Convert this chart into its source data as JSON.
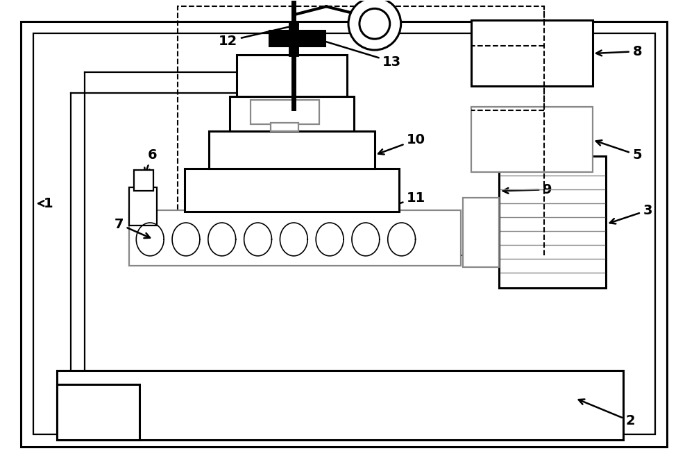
{
  "bg_color": "#ffffff",
  "lc": "#000000",
  "gc": "#888888",
  "fig_width": 10.0,
  "fig_height": 6.63,
  "lw_heavy": 2.2,
  "lw_med": 1.6,
  "lw_light": 1.2
}
